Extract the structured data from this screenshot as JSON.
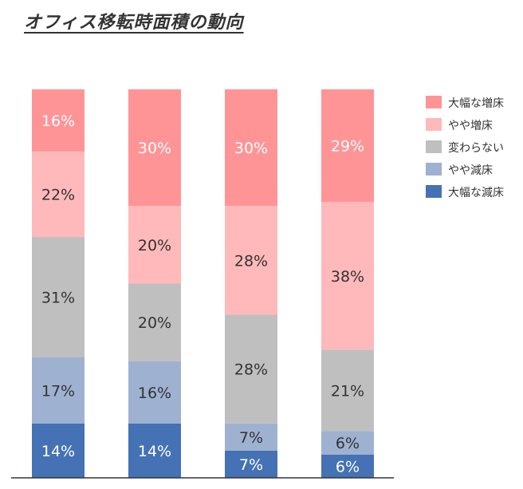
{
  "chart_data": {
    "type": "stacked-bar-100",
    "title": "オフィス移転時面積の動向",
    "categories": [
      "",
      "",
      "",
      ""
    ],
    "series": [
      {
        "name": "大幅な減床",
        "color": "#4472b4",
        "values": [
          14,
          14,
          7,
          6
        ],
        "label_color": "#ffffff"
      },
      {
        "name": "やや減床",
        "color": "#9fb1d1",
        "values": [
          17,
          16,
          7,
          6
        ],
        "label_color": "#333333"
      },
      {
        "name": "変わらない",
        "color": "#bfbfbf",
        "values": [
          31,
          20,
          28,
          21
        ],
        "label_color": "#333333"
      },
      {
        "name": "やや増床",
        "color": "#ffb9bb",
        "values": [
          22,
          20,
          28,
          38
        ],
        "label_color": "#333333"
      },
      {
        "name": "大幅な増床",
        "color": "#ff9496",
        "values": [
          16,
          30,
          30,
          29
        ],
        "label_color": "#ffffff"
      }
    ],
    "legend_order": [
      "大幅な増床",
      "やや増床",
      "変わらない",
      "やや減床",
      "大幅な減床"
    ],
    "ylim": [
      0,
      100
    ],
    "legend_position": "right"
  }
}
